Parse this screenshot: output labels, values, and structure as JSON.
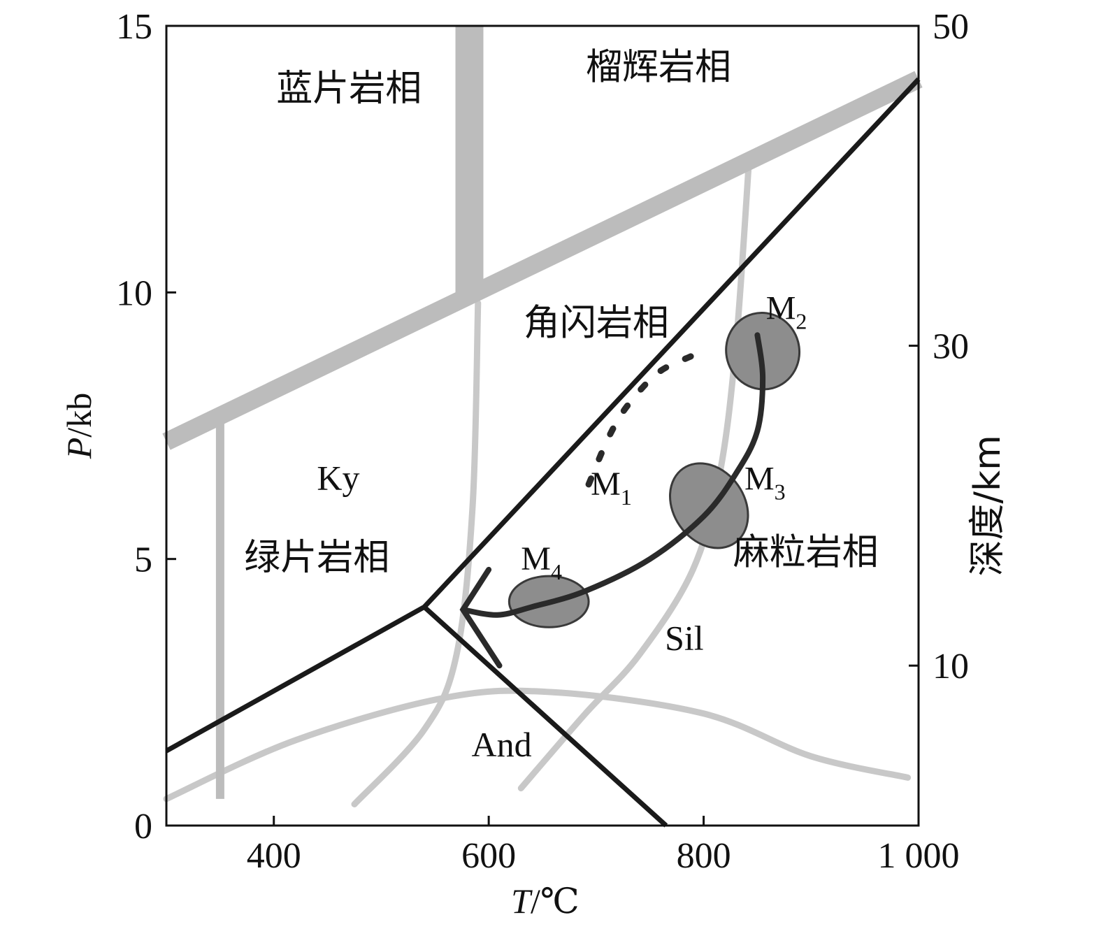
{
  "chart_data": {
    "type": "phase-diagram",
    "x": {
      "label_var": "T",
      "label_unit": "/℃",
      "range": [
        300,
        1000
      ],
      "ticks": [
        400,
        600,
        800,
        1000
      ],
      "tick_labels": [
        "400",
        "600",
        "800",
        "1 000"
      ]
    },
    "y_left": {
      "label_var": "P",
      "label_unit": "/kb",
      "range": [
        0,
        15
      ],
      "ticks": [
        0,
        5,
        10,
        15
      ],
      "tick_labels": [
        "0",
        "5",
        "10",
        "15"
      ]
    },
    "y_right": {
      "label": "深度/km",
      "range": [
        0,
        50
      ],
      "ticks": [
        10,
        30,
        50
      ],
      "tick_labels": [
        "10",
        "30",
        "50"
      ]
    },
    "facies": [
      {
        "name": "蓝片岩相",
        "at": [
          470,
          13.6
        ]
      },
      {
        "name": "榴辉岩相",
        "at": [
          758,
          14.0
        ]
      },
      {
        "name": "角闪岩相",
        "at": [
          700,
          9.2
        ]
      },
      {
        "name": "绿片岩相",
        "at": [
          440,
          4.8
        ]
      },
      {
        "name": "麻粒岩相",
        "at": [
          895,
          4.9
        ]
      }
    ],
    "minerals": [
      {
        "name": "Ky",
        "at": [
          460,
          6.3
        ]
      },
      {
        "name": "Sil",
        "at": [
          782,
          3.3
        ]
      },
      {
        "name": "And",
        "at": [
          612,
          1.3
        ]
      }
    ],
    "stages": [
      {
        "main": "M",
        "sub": "1",
        "at": [
          695,
          6.2
        ]
      },
      {
        "main": "M",
        "sub": "2",
        "at": [
          858,
          9.5
        ]
      },
      {
        "main": "M",
        "sub": "3",
        "at": [
          838,
          6.3
        ]
      },
      {
        "main": "M",
        "sub": "4",
        "at": [
          630,
          4.8
        ]
      }
    ],
    "gray_boundaries": [
      {
        "name": "blueschist-eclogite upper band",
        "points": [
          [
            300,
            7.2
          ],
          [
            1000,
            14.0
          ]
        ],
        "width": 26
      },
      {
        "name": "blueschist-eclogite vertical band",
        "points": [
          [
            582,
            15.0
          ],
          [
            582,
            10.0
          ]
        ],
        "width": 40
      },
      {
        "name": "greenschist left boundary",
        "points": [
          [
            350,
            7.6
          ],
          [
            350,
            0.5
          ]
        ],
        "width": 12
      }
    ],
    "gray_curves": [
      {
        "name": "Ky-And",
        "points": [
          [
            300,
            0.5
          ],
          [
            420,
            1.6
          ],
          [
            560,
            2.4
          ],
          [
            660,
            2.5
          ],
          [
            800,
            2.1
          ],
          [
            900,
            1.3
          ],
          [
            990,
            0.9
          ]
        ]
      },
      {
        "name": "Ky-Sil",
        "points": [
          [
            475,
            0.4
          ],
          [
            540,
            1.8
          ],
          [
            570,
            3.2
          ],
          [
            585,
            6.0
          ],
          [
            590,
            9.8
          ]
        ]
      },
      {
        "name": "Sil boundary",
        "points": [
          [
            630,
            0.7
          ],
          [
            690,
            2.1
          ],
          [
            740,
            3.2
          ],
          [
            790,
            4.8
          ],
          [
            815,
            6.6
          ],
          [
            830,
            9.0
          ],
          [
            842,
            12.4
          ]
        ]
      }
    ],
    "black_boundaries": [
      {
        "name": "amphibolite-greenschist/granulite",
        "points": [
          [
            300,
            1.4
          ],
          [
            540,
            4.1
          ],
          [
            1000,
            14.0
          ]
        ]
      },
      {
        "name": "greenschist-amphibolite low-P",
        "points": [
          [
            540,
            4.1
          ],
          [
            765,
            0.0
          ]
        ]
      }
    ],
    "ellipses": [
      {
        "stage": "M2",
        "center": [
          855,
          8.9
        ],
        "rx": 34,
        "ry": 0.72,
        "rotate": -15
      },
      {
        "stage": "M3",
        "center": [
          805,
          6.0
        ],
        "rx": 33,
        "ry": 0.85,
        "rotate": -35
      },
      {
        "stage": "M4",
        "center": [
          656,
          4.2
        ],
        "rx": 37,
        "ry": 0.48,
        "rotate": 0
      }
    ],
    "pt_path": {
      "points": [
        [
          850,
          9.2
        ],
        [
          855,
          8.4
        ],
        [
          850,
          7.4
        ],
        [
          830,
          6.6
        ],
        [
          800,
          5.8
        ],
        [
          750,
          5.0
        ],
        [
          690,
          4.4
        ],
        [
          640,
          4.1
        ],
        [
          608,
          3.95
        ],
        [
          576,
          4.05
        ]
      ],
      "arrowhead": [
        [
          600,
          4.8
        ],
        [
          576,
          4.05
        ],
        [
          610,
          3.0
        ]
      ]
    },
    "dotted_path": {
      "points": [
        [
          693,
          6.4
        ],
        [
          712,
          7.3
        ],
        [
          730,
          7.9
        ],
        [
          758,
          8.5
        ],
        [
          788,
          8.8
        ]
      ]
    }
  }
}
